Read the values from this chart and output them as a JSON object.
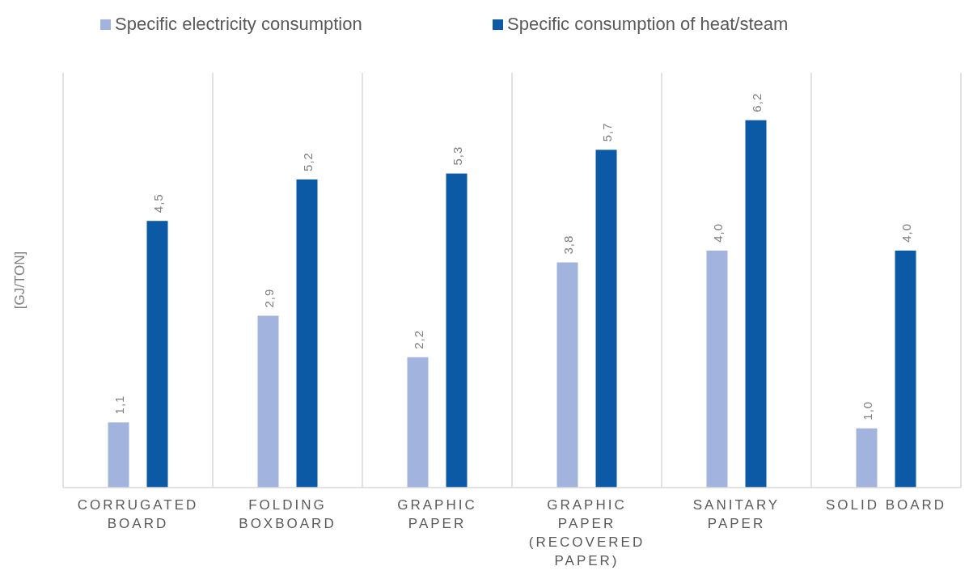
{
  "chart_data": {
    "type": "bar",
    "ylabel": "[GJ/TON]",
    "categories": [
      "CORRUGATED BOARD",
      "FOLDING BOXBOARD",
      "GRAPHIC PAPER",
      "GRAPHIC PAPER (RECOVERED PAPER)",
      "SANITARY PAPER",
      "SOLID BOARD"
    ],
    "series": [
      {
        "name": "Specific electricity consumption",
        "color": "#a2b4dd",
        "values": [
          1.1,
          2.9,
          2.2,
          3.8,
          4.0,
          1.0
        ],
        "value_labels": [
          "1,1",
          "2,9",
          "2,2",
          "3,8",
          "4,0",
          "1,0"
        ]
      },
      {
        "name": "Specific consumption of heat/steam",
        "color": "#0c5aa6",
        "values": [
          4.5,
          5.2,
          5.3,
          5.7,
          6.2,
          4.0
        ],
        "value_labels": [
          "4,5",
          "5,2",
          "5,3",
          "5,7",
          "6,2",
          "4,0"
        ]
      }
    ],
    "ylim": [
      0,
      7
    ],
    "tick_labels": "x",
    "grid": "x",
    "legend": "top"
  }
}
